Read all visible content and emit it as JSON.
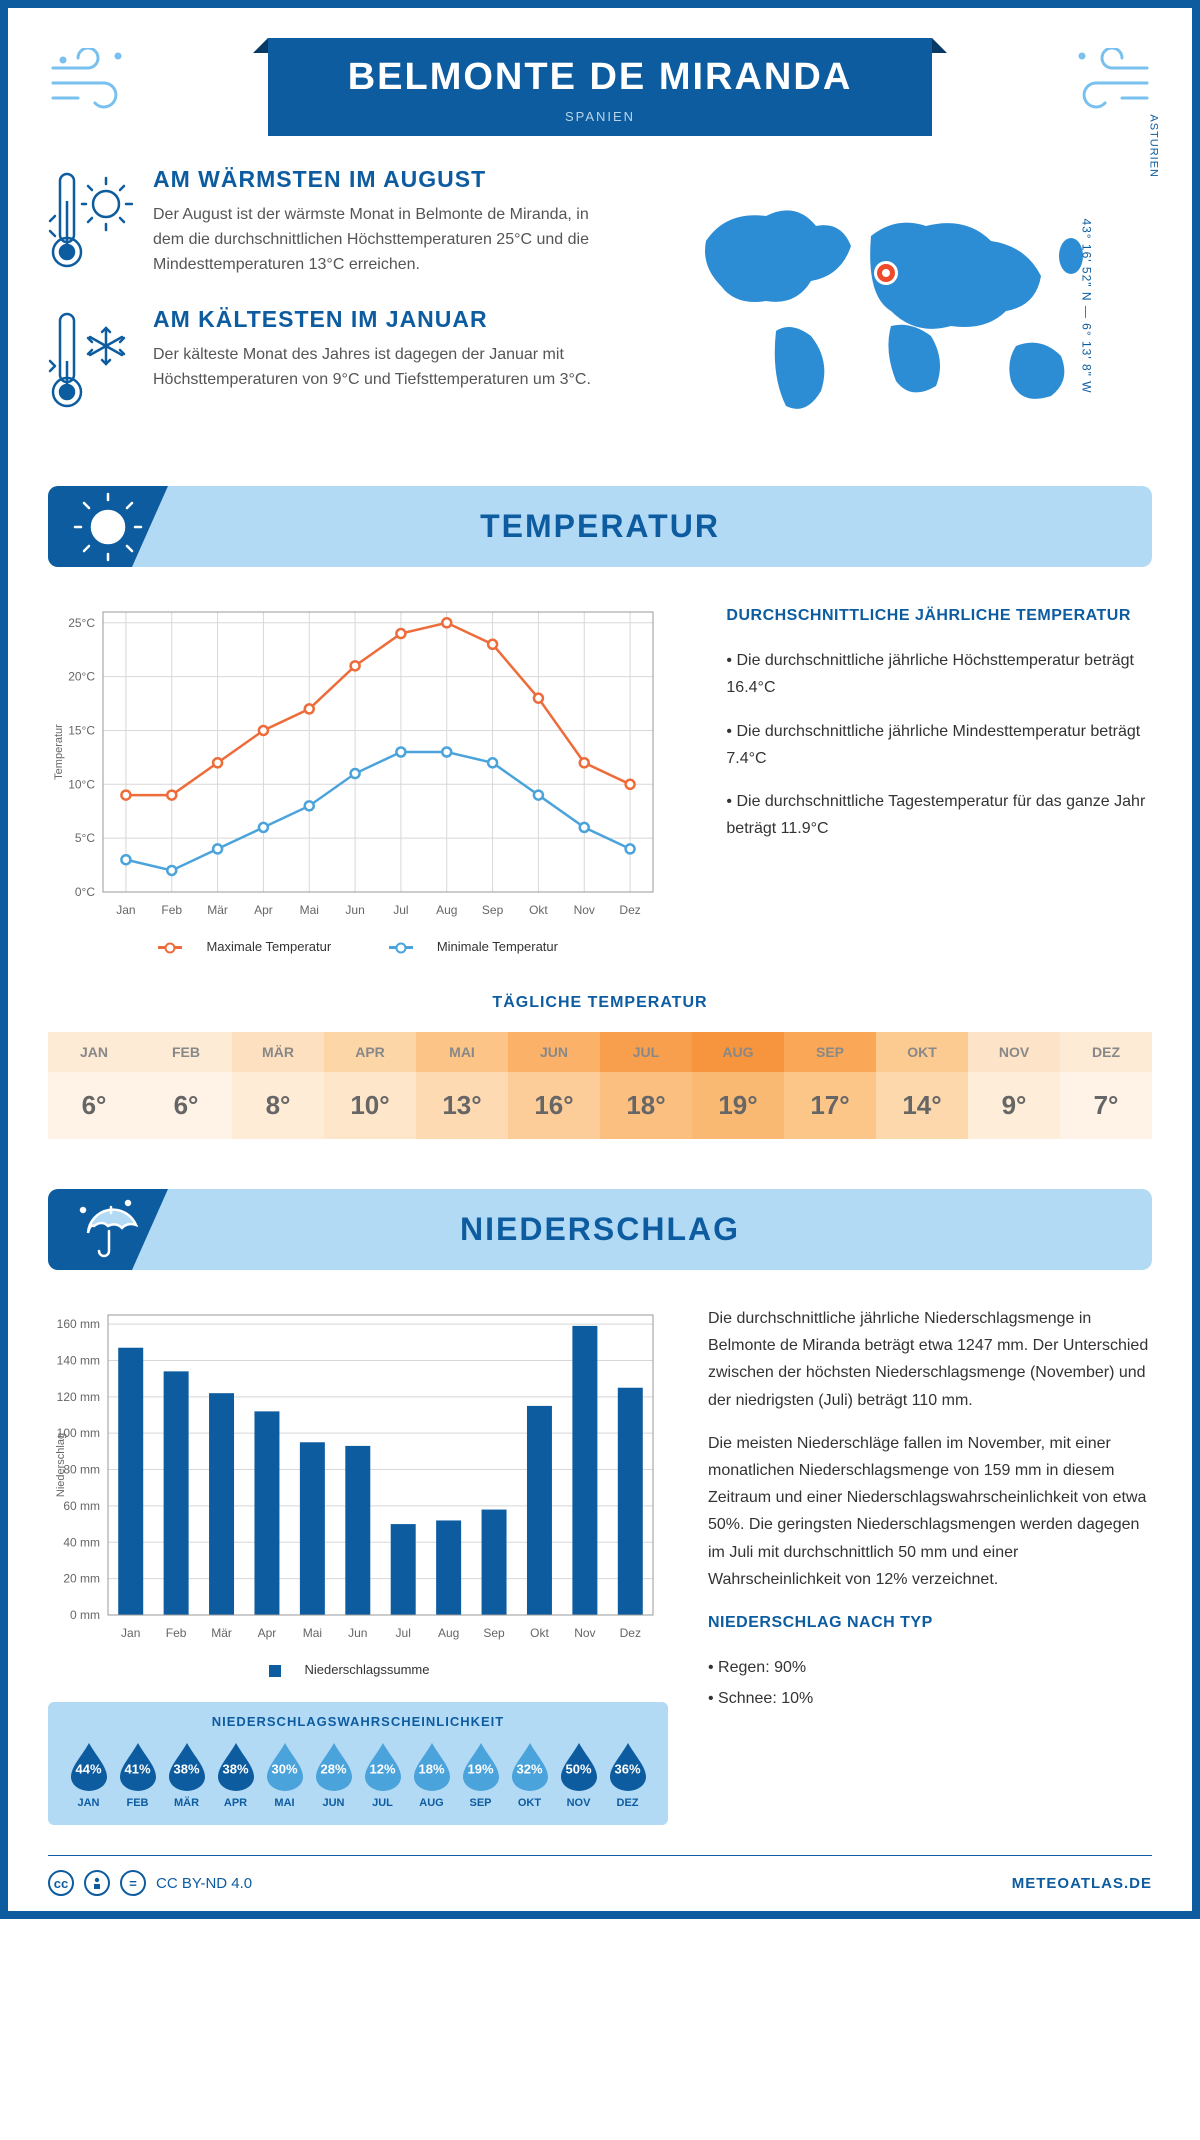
{
  "header": {
    "title": "BELMONTE DE MIRANDA",
    "country": "SPANIEN",
    "region": "ASTURIEN",
    "coords": "43° 16' 52\" N — 6° 13' 8\" W"
  },
  "facts": {
    "warm": {
      "heading": "AM WÄRMSTEN IM AUGUST",
      "text": "Der August ist der wärmste Monat in Belmonte de Miranda, in dem die durchschnittlichen Höchsttemperaturen 25°C und die Mindesttemperaturen 13°C erreichen."
    },
    "cold": {
      "heading": "AM KÄLTESTEN IM JANUAR",
      "text": "Der kälteste Monat des Jahres ist dagegen der Januar mit Höchsttemperaturen von 9°C und Tiefsttemperaturen um 3°C."
    }
  },
  "sections": {
    "temp": "TEMPERATUR",
    "precip": "NIEDERSCHLAG"
  },
  "months": [
    "Jan",
    "Feb",
    "Mär",
    "Apr",
    "Mai",
    "Jun",
    "Jul",
    "Aug",
    "Sep",
    "Okt",
    "Nov",
    "Dez"
  ],
  "months_upper": [
    "JAN",
    "FEB",
    "MÄR",
    "APR",
    "MAI",
    "JUN",
    "JUL",
    "AUG",
    "SEP",
    "OKT",
    "NOV",
    "DEZ"
  ],
  "temp_chart": {
    "y_label": "Temperatur",
    "y_ticks": [
      0,
      5,
      10,
      15,
      20,
      25
    ],
    "y_tick_labels": [
      "0°C",
      "5°C",
      "10°C",
      "15°C",
      "20°C",
      "25°C"
    ],
    "ylim": [
      0,
      26
    ],
    "max_series": [
      9,
      9,
      12,
      15,
      17,
      21,
      24,
      25,
      23,
      18,
      12,
      10
    ],
    "min_series": [
      3,
      2,
      4,
      6,
      8,
      11,
      13,
      13,
      12,
      9,
      6,
      4
    ],
    "max_color": "#ee6b3a",
    "min_color": "#4ba3db",
    "grid_color": "#d8d8d8",
    "legend_max": "Maximale Temperatur",
    "legend_min": "Minimale Temperatur"
  },
  "temp_info": {
    "heading": "DURCHSCHNITTLICHE JÄHRLICHE TEMPERATUR",
    "b1": "• Die durchschnittliche jährliche Höchsttemperatur beträgt 16.4°C",
    "b2": "• Die durchschnittliche jährliche Mindesttemperatur beträgt 7.4°C",
    "b3": "• Die durchschnittliche Tagestemperatur für das ganze Jahr beträgt 11.9°C"
  },
  "daily_temp": {
    "heading": "TÄGLICHE TEMPERATUR",
    "values": [
      "6°",
      "6°",
      "8°",
      "10°",
      "13°",
      "16°",
      "18°",
      "19°",
      "17°",
      "14°",
      "9°",
      "7°"
    ],
    "header_colors": [
      "#fdebd6",
      "#fdebd6",
      "#fde0c0",
      "#fdd6a8",
      "#fcc587",
      "#fbb268",
      "#f89f4d",
      "#f7953e",
      "#faa857",
      "#fccb91",
      "#fde4c8",
      "#fdebd6"
    ],
    "body_colors": [
      "#fef3e6",
      "#fef3e6",
      "#feecd7",
      "#fde6ca",
      "#fddab2",
      "#fccd98",
      "#fbbf80",
      "#fab972",
      "#fcc689",
      "#fdd8ad",
      "#feeed9",
      "#fef3e6"
    ]
  },
  "precip_chart": {
    "y_label": "Niederschlag",
    "y_ticks": [
      0,
      20,
      40,
      60,
      80,
      100,
      120,
      140,
      160
    ],
    "ylim": [
      0,
      165
    ],
    "values": [
      147,
      134,
      122,
      112,
      95,
      93,
      50,
      52,
      58,
      115,
      159,
      125
    ],
    "bar_color": "#0d5ca0",
    "legend": "Niederschlagssumme"
  },
  "precip_text": {
    "p1": "Die durchschnittliche jährliche Niederschlagsmenge in Belmonte de Miranda beträgt etwa 1247 mm. Der Unterschied zwischen der höchsten Niederschlagsmenge (November) und der niedrigsten (Juli) beträgt 110 mm.",
    "p2": "Die meisten Niederschläge fallen im November, mit einer monatlichen Niederschlagsmenge von 159 mm in diesem Zeitraum und einer Niederschlagswahrscheinlichkeit von etwa 50%. Die geringsten Niederschlagsmengen werden dagegen im Juli mit durchschnittlich 50 mm und einer Wahrscheinlichkeit von 12% verzeichnet.",
    "type_heading": "NIEDERSCHLAG NACH TYP",
    "rain": "• Regen: 90%",
    "snow": "• Schnee: 10%"
  },
  "prob": {
    "heading": "NIEDERSCHLAGSWAHRSCHEINLICHKEIT",
    "values": [
      44,
      41,
      38,
      38,
      30,
      28,
      12,
      18,
      19,
      32,
      50,
      36
    ],
    "dark": "#0d5ca0",
    "light": "#4ba3db"
  },
  "footer": {
    "license": "CC BY-ND 4.0",
    "site": "METEOATLAS.DE"
  }
}
